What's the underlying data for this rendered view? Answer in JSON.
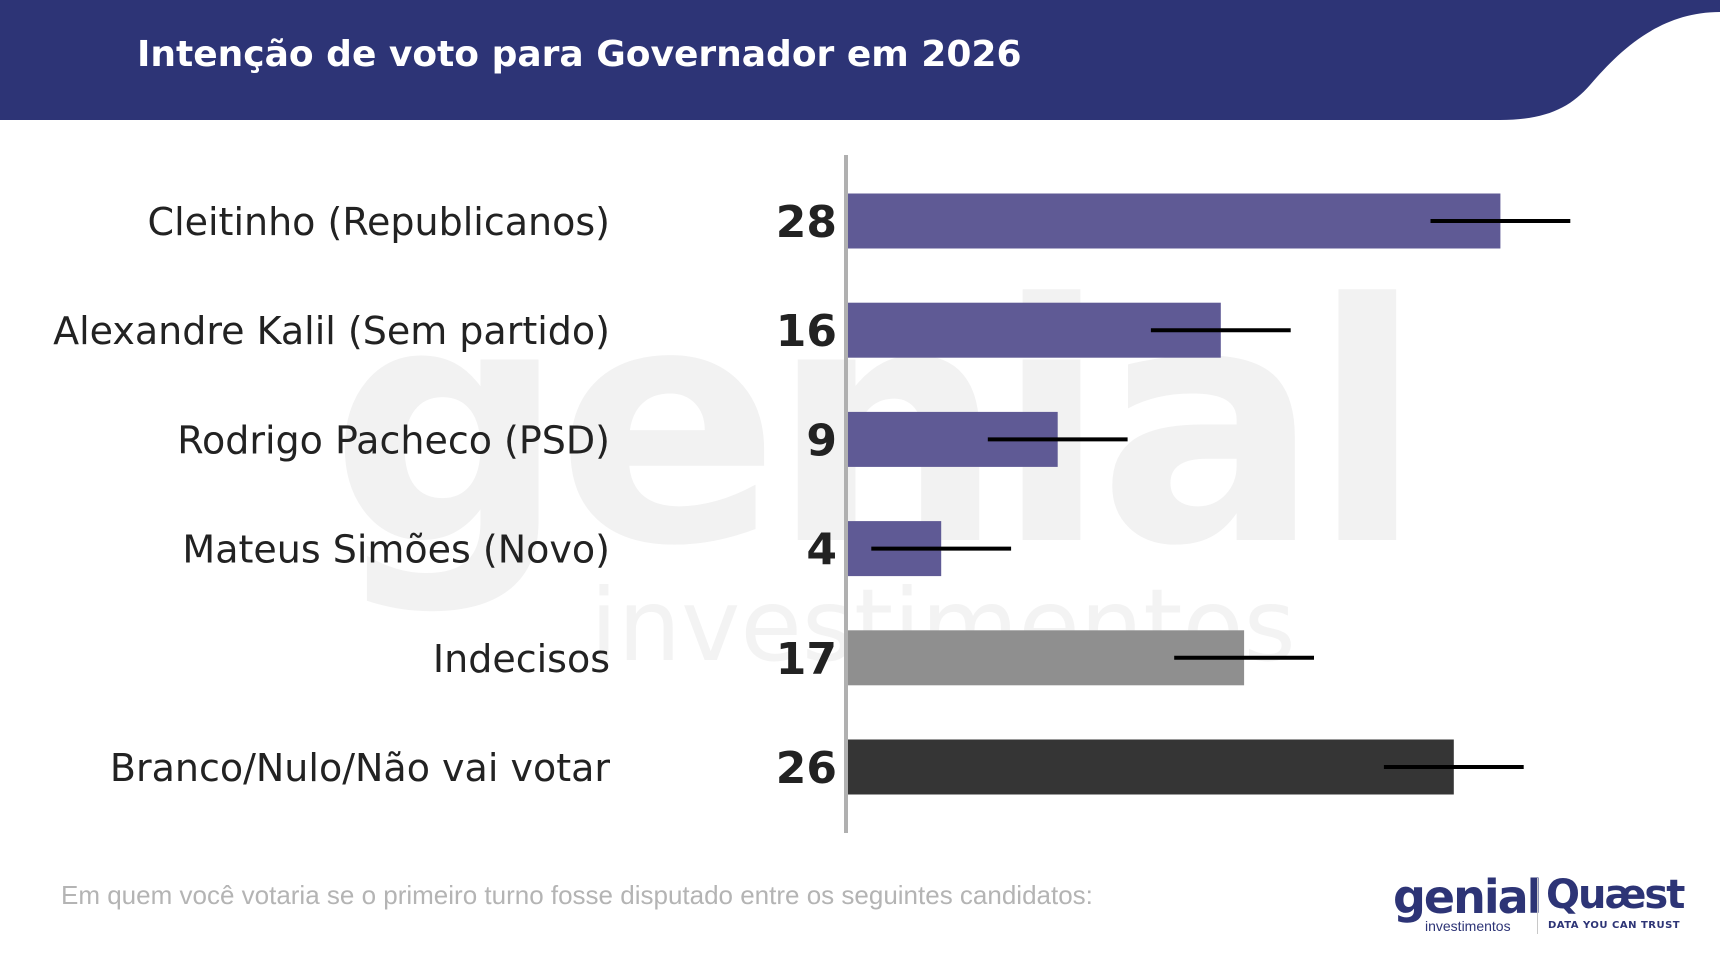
{
  "header": {
    "title": "Intenção de voto para Governador em 2026"
  },
  "colors": {
    "header_bg": "#2d3476",
    "bar_candidate": "#5f5a95",
    "bar_undecided": "#8f8f8f",
    "bar_blank": "#353535",
    "error_bar": "#000000",
    "axis_line": "#b0b0b0"
  },
  "chart_data": {
    "type": "bar",
    "orientation": "horizontal",
    "categories": [
      "Cleitinho (Republicanos)",
      "Alexandre Kalil (Sem partido)",
      "Rodrigo Pacheco (PSD)",
      "Mateus Simões (Novo)",
      "Indecisos",
      "Branco/Nulo/Não vai votar"
    ],
    "values": [
      28,
      16,
      9,
      4,
      17,
      26
    ],
    "value_labels": [
      "28",
      "16",
      "9",
      "4",
      "17",
      "26"
    ],
    "bar_colors": [
      "#5f5a95",
      "#5f5a95",
      "#5f5a95",
      "#5f5a95",
      "#8f8f8f",
      "#353535"
    ],
    "error_margin": 3,
    "title": "",
    "xlabel": "",
    "ylabel": "",
    "xlim": [
      0,
      35
    ],
    "grid": false,
    "legend": "none"
  },
  "footer": {
    "question": "Em quem você votaria se o primeiro turno fosse disputado entre os seguintes candidatos:"
  },
  "watermark": {
    "word": "genial",
    "sub": "investimentos"
  },
  "logos": {
    "genial": "genial",
    "genial_sub": "investimentos",
    "quaest": "Quæst",
    "quaest_tagline": "DATA YOU CAN TRUST"
  }
}
